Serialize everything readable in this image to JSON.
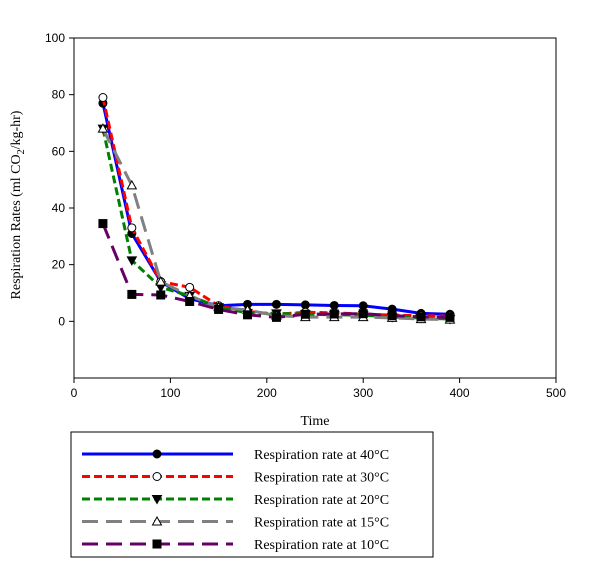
{
  "chart_data": {
    "type": "line",
    "xlabel": "Time",
    "ylabel_main": "Respiration Rates (ml CO",
    "ylabel_sub": "2",
    "ylabel_tail": "/kg-hr)",
    "xlim": [
      0,
      500
    ],
    "ylim": [
      -20,
      100
    ],
    "xticks": [
      0,
      100,
      200,
      300,
      400,
      500
    ],
    "yticks": [
      0,
      20,
      40,
      60,
      80,
      100
    ],
    "grid": false,
    "legend_position": "bottom",
    "series": [
      {
        "name": "Respiration rate at 40°C",
        "color": "#0000ff",
        "dash": "solid",
        "marker": "filled-circle",
        "x": [
          30,
          60,
          90,
          120,
          150,
          180,
          210,
          240,
          270,
          300,
          330,
          360,
          390
        ],
        "y": [
          77,
          31,
          14,
          8,
          5.5,
          6,
          6,
          5.8,
          5.6,
          5.5,
          4.3,
          2.8,
          2.5
        ]
      },
      {
        "name": "Respiration rate at 30°C",
        "color": "#ff0000",
        "dash": "dash",
        "marker": "open-circle",
        "x": [
          30,
          60,
          90,
          120,
          150,
          180,
          210,
          240,
          270,
          300,
          330,
          360,
          390
        ],
        "y": [
          79,
          33,
          14,
          12,
          5.5,
          3.5,
          2.5,
          3.2,
          3,
          2.5,
          2.2,
          2,
          1.8
        ]
      },
      {
        "name": "Respiration rate at 20°C",
        "color": "#008000",
        "dash": "dash",
        "marker": "filled-triangle-down",
        "x": [
          30,
          60,
          90,
          120,
          150,
          180,
          210,
          240,
          270,
          300,
          330,
          360,
          390
        ],
        "y": [
          68,
          21.5,
          12,
          9,
          5,
          3,
          2.8,
          2.5,
          2.3,
          2.2,
          1.5,
          1.2,
          0.8
        ]
      },
      {
        "name": "Respiration rate at 15°C",
        "color": "#808080",
        "dash": "longdash",
        "marker": "open-triangle-up",
        "x": [
          30,
          60,
          90,
          120,
          150,
          180,
          210,
          240,
          270,
          300,
          330,
          360,
          390
        ],
        "y": [
          68,
          48,
          14,
          9,
          5,
          4,
          2,
          1.5,
          1.5,
          1.5,
          1.2,
          0.8,
          0.6
        ]
      },
      {
        "name": "Respiration rate at 10°C",
        "color": "#660066",
        "dash": "longdash",
        "marker": "filled-square",
        "x": [
          30,
          60,
          90,
          120,
          150,
          180,
          210,
          240,
          270,
          300,
          330,
          360,
          390
        ],
        "y": [
          34.5,
          9.5,
          9.3,
          7,
          4.2,
          2.3,
          1.4,
          2.5,
          2.6,
          2.7,
          2,
          1.6,
          1.4
        ]
      }
    ]
  }
}
